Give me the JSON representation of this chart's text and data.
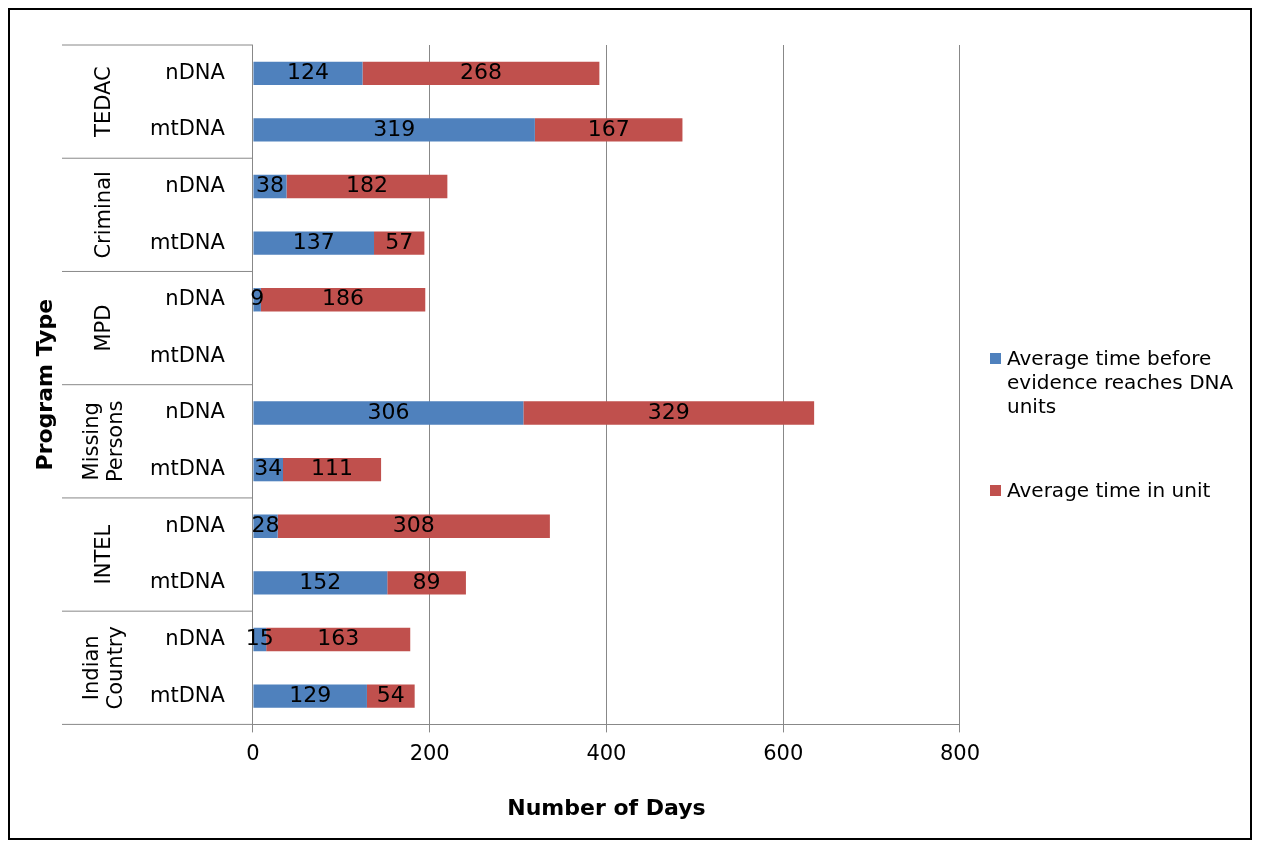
{
  "chart_data": {
    "type": "bar",
    "orientation": "horizontal",
    "stacked": true,
    "xlabel": "Number of Days",
    "ylabel": "Program Type",
    "categories": [
      "nDNA",
      "mtDNA",
      "nDNA",
      "mtDNA",
      "nDNA",
      "mtDNA",
      "nDNA",
      "mtDNA",
      "nDNA",
      "mtDNA",
      "nDNA",
      "mtDNA"
    ],
    "annotations": [
      "TEDAC",
      "Criminal",
      "MPD",
      "Missing Persons",
      "INTEL",
      "Indian Country"
    ],
    "series": [
      {
        "name": "Average time before evidence reaches DNA units",
        "color": "#4f81bd",
        "values": [
          124,
          319,
          38,
          137,
          9,
          null,
          306,
          34,
          28,
          152,
          15,
          129
        ]
      },
      {
        "name": "Average time in unit",
        "color": "#c0504d",
        "values": [
          268,
          167,
          182,
          57,
          186,
          null,
          329,
          111,
          308,
          89,
          163,
          54
        ]
      }
    ],
    "xlim": [
      0,
      800
    ],
    "xticks": [
      0,
      200,
      400,
      600,
      800
    ],
    "grid": "x",
    "legend": "right",
    "data_labels": true
  }
}
